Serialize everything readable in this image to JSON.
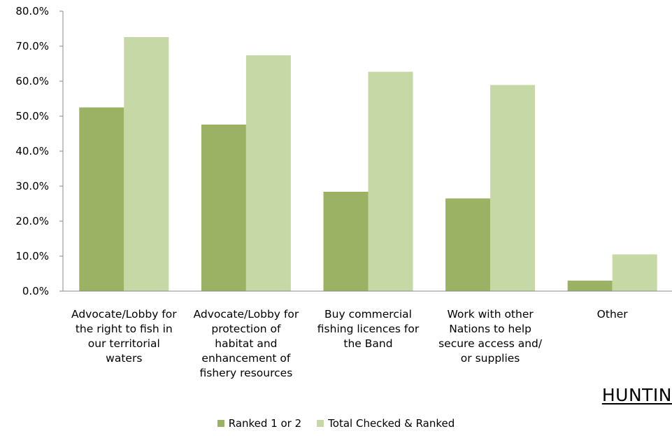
{
  "chart_data": {
    "type": "bar",
    "categories": [
      [
        "Advocate/Lobby for",
        "the right to fish in",
        "our territorial",
        "waters"
      ],
      [
        "Advocate/Lobby for",
        "protection of",
        "habitat and",
        "enhancement of",
        "fishery resources"
      ],
      [
        "Buy commercial",
        "fishing licences for",
        "the Band"
      ],
      [
        "Work with other",
        "Nations to help",
        "secure access and/",
        "or supplies"
      ],
      [
        "Other"
      ]
    ],
    "series": [
      {
        "name": "Ranked 1 or 2",
        "color": "#9bb163",
        "values": [
          52.5,
          47.6,
          28.4,
          26.5,
          3.0
        ]
      },
      {
        "name": "Total Checked & Ranked",
        "color": "#c5d8a6",
        "values": [
          72.6,
          67.4,
          62.7,
          58.9,
          10.5
        ]
      }
    ],
    "yticks": [
      "0.0%",
      "10.0%",
      "20.0%",
      "30.0%",
      "40.0%",
      "50.0%",
      "60.0%",
      "70.0%",
      "80.0%"
    ],
    "ylim": [
      0,
      80
    ],
    "grid": false,
    "legend_position": "bottom"
  },
  "corner_text": "HUNTIN"
}
